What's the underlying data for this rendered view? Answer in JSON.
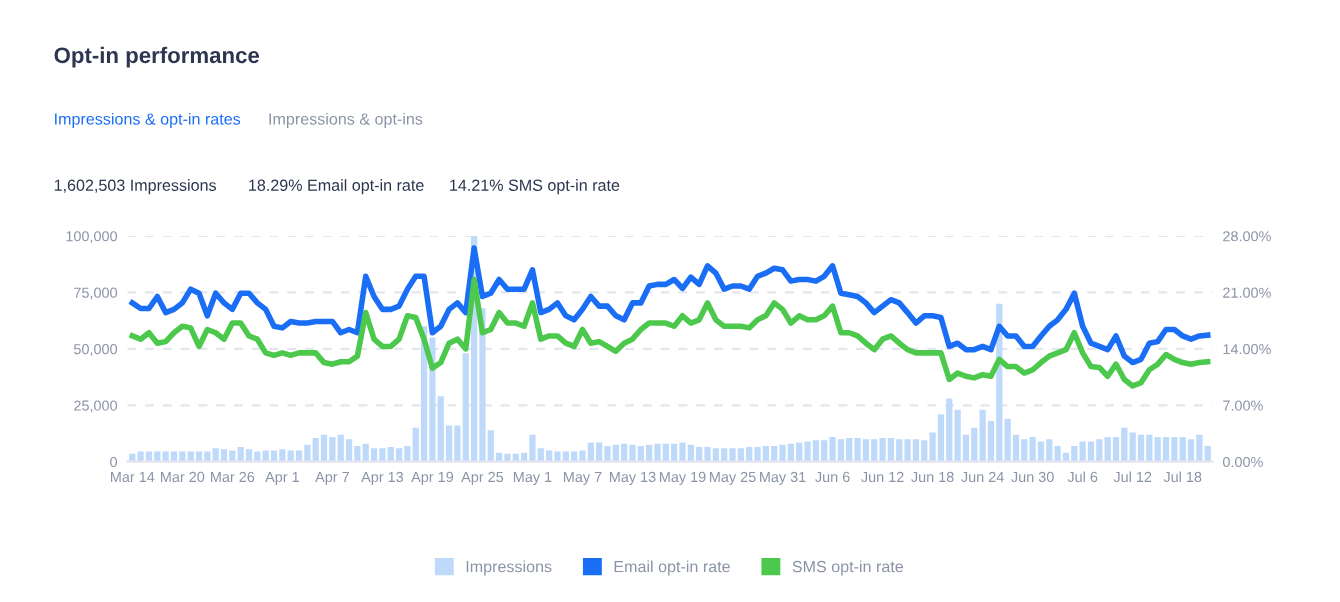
{
  "chart_data": {
    "type": "bar",
    "title": "Opt-in performance",
    "annotations": [
      "Impressions & opt-in rates",
      "Impressions & opt-ins",
      "1,602,503 Impressions",
      "18.29% Email opt-in rate",
      "14.21% SMS opt-in rate"
    ],
    "categories": [
      "Mar 14",
      null,
      null,
      null,
      null,
      null,
      "Mar 20",
      null,
      null,
      null,
      null,
      null,
      "Mar 26",
      null,
      null,
      null,
      null,
      null,
      "Apr 1",
      null,
      null,
      null,
      null,
      null,
      "Apr 7",
      null,
      null,
      null,
      null,
      null,
      "Apr 13",
      null,
      null,
      null,
      null,
      null,
      "Apr 19",
      null,
      null,
      null,
      null,
      null,
      "Apr 25",
      null,
      null,
      null,
      null,
      null,
      "May 1",
      null,
      null,
      null,
      null,
      null,
      "May 7",
      null,
      null,
      null,
      null,
      null,
      "May 13",
      null,
      null,
      null,
      null,
      null,
      "May 19",
      null,
      null,
      null,
      null,
      null,
      "May 25",
      null,
      null,
      null,
      null,
      null,
      "May 31",
      null,
      null,
      null,
      null,
      null,
      "Jun 6",
      null,
      null,
      null,
      null,
      null,
      "Jun 12",
      null,
      null,
      null,
      null,
      null,
      "Jun 18",
      null,
      null,
      null,
      null,
      null,
      "Jun 24",
      null,
      null,
      null,
      null,
      null,
      "Jun 30",
      null,
      null,
      null,
      null,
      null,
      "Jul 6",
      null,
      null,
      null,
      null,
      null,
      "Jul 12",
      null,
      null,
      null,
      null,
      null,
      "Jul 18",
      null,
      null,
      null
    ],
    "series": [
      {
        "name": "Impressions",
        "color": "#bfd9fb",
        "values": [
          3500,
          4500,
          4500,
          4500,
          4500,
          4500,
          4500,
          4500,
          4500,
          4500,
          6000,
          5500,
          5000,
          6500,
          5500,
          4500,
          5000,
          5000,
          5500,
          5000,
          5000,
          7500,
          10500,
          12000,
          11000,
          12000,
          10000,
          7000,
          8000,
          6000,
          6000,
          6500,
          6000,
          7000,
          15000,
          60000,
          55000,
          29000,
          16000,
          16000,
          48000,
          100000,
          68000,
          14000,
          4000,
          3500,
          3500,
          4000,
          12000,
          6000,
          5000,
          4500,
          4500,
          4500,
          5000,
          8500,
          8500,
          7000,
          7500,
          8000,
          7500,
          7000,
          7500,
          8000,
          8000,
          8000,
          8500,
          7500,
          6500,
          6500,
          6000,
          6000,
          6000,
          6000,
          6500,
          6500,
          7000,
          7000,
          7500,
          8000,
          8500,
          9000,
          9500,
          9500,
          11000,
          10000,
          10500,
          10500,
          10000,
          10000,
          10500,
          10500,
          10000,
          10000,
          10000,
          9500,
          13000,
          21000,
          28000,
          23000,
          12000,
          15000,
          23000,
          18000,
          70000,
          19000,
          12000,
          10000,
          11000,
          9000,
          10000,
          7000,
          4000,
          7000,
          9000,
          9000,
          10000,
          11000,
          11000,
          15000,
          13000,
          12000,
          12000,
          11000,
          11000,
          11000,
          11000,
          10000,
          12000,
          7000
        ]
      },
      {
        "name": "Email opt-in rate",
        "type": "line",
        "axis": "y2",
        "color": "#1a6ef5",
        "values": [
          19.7,
          19.0,
          19.0,
          20.5,
          18.5,
          18.9,
          19.7,
          21.4,
          20.9,
          18.1,
          20.9,
          19.7,
          18.9,
          20.9,
          20.9,
          19.7,
          18.9,
          16.8,
          16.6,
          17.4,
          17.2,
          17.2,
          17.4,
          17.4,
          17.4,
          16.0,
          16.4,
          16.0,
          23.0,
          20.5,
          18.9,
          18.9,
          19.3,
          21.4,
          23.0,
          23.0,
          16.0,
          16.8,
          18.9,
          19.7,
          18.5,
          26.5,
          20.5,
          20.9,
          22.6,
          21.4,
          21.4,
          21.4,
          23.8,
          18.5,
          18.9,
          19.7,
          18.1,
          17.6,
          18.9,
          20.5,
          19.3,
          19.3,
          18.1,
          17.6,
          19.7,
          19.7,
          21.8,
          22.0,
          22.0,
          22.6,
          21.5,
          22.9,
          22.0,
          24.3,
          23.4,
          21.4,
          21.8,
          21.8,
          21.4,
          23.0,
          23.4,
          24.0,
          23.8,
          22.4,
          22.6,
          22.6,
          22.4,
          23.0,
          24.3,
          20.9,
          20.7,
          20.5,
          19.7,
          18.5,
          19.3,
          20.1,
          19.7,
          18.5,
          17.2,
          18.1,
          18.1,
          17.9,
          14.3,
          14.7,
          13.9,
          13.9,
          14.3,
          13.9,
          16.8,
          15.6,
          15.6,
          14.3,
          14.3,
          15.6,
          16.8,
          17.6,
          18.9,
          20.9,
          16.8,
          14.7,
          14.3,
          13.9,
          15.6,
          13.1,
          12.3,
          12.7,
          14.7,
          14.9,
          16.4,
          16.4,
          15.6,
          15.2,
          15.6,
          15.7
        ]
      },
      {
        "name": "SMS opt-in rate",
        "type": "line",
        "axis": "y2",
        "color": "#4cc94c",
        "values": [
          15.6,
          15.2,
          16.0,
          14.7,
          14.9,
          16.0,
          16.8,
          16.6,
          14.3,
          16.4,
          16.0,
          15.2,
          17.2,
          17.2,
          15.6,
          15.2,
          13.5,
          13.2,
          13.5,
          13.2,
          13.5,
          13.5,
          13.5,
          12.3,
          12.1,
          12.4,
          12.4,
          13.1,
          18.5,
          15.2,
          14.3,
          14.3,
          15.2,
          18.1,
          17.9,
          15.2,
          11.6,
          12.3,
          14.7,
          15.2,
          14.0,
          22.6,
          16.0,
          16.4,
          18.5,
          17.2,
          17.2,
          16.8,
          19.7,
          15.2,
          15.6,
          15.6,
          14.7,
          14.3,
          16.4,
          14.7,
          14.9,
          14.3,
          13.7,
          14.7,
          15.2,
          16.4,
          17.2,
          17.2,
          17.2,
          16.8,
          18.1,
          17.2,
          17.6,
          19.7,
          17.6,
          16.8,
          16.8,
          16.8,
          16.6,
          17.6,
          18.1,
          19.7,
          18.9,
          17.2,
          18.1,
          17.6,
          17.6,
          18.1,
          19.3,
          16.0,
          16.0,
          15.6,
          14.7,
          13.9,
          15.2,
          15.6,
          14.7,
          13.9,
          13.5,
          13.5,
          13.5,
          13.5,
          10.2,
          11.0,
          10.6,
          10.4,
          10.8,
          10.6,
          12.7,
          11.8,
          11.8,
          11.0,
          11.4,
          12.3,
          13.1,
          13.5,
          13.9,
          16.0,
          13.5,
          11.8,
          11.7,
          10.6,
          12.1,
          10.2,
          9.4,
          9.8,
          11.4,
          12.1,
          13.3,
          12.7,
          12.3,
          12.1,
          12.3,
          12.4
        ]
      }
    ],
    "ylim": [
      0,
      100000
    ],
    "yticks": [
      0,
      {
        "value": 25000,
        "label": "25,000"
      },
      {
        "value": 50000,
        "label": "50,000"
      },
      {
        "value": 75000,
        "label": "75,000"
      },
      {
        "value": 100000,
        "label": "100,000"
      }
    ],
    "y2lim": [
      0,
      28
    ],
    "y2ticks": [
      {
        "value": 0,
        "label": "0.00%"
      },
      {
        "value": 7,
        "label": "7.00%"
      },
      {
        "value": 14,
        "label": "14.00%"
      },
      {
        "value": 21,
        "label": "21.00%"
      },
      {
        "value": 28,
        "label": "28.00%"
      }
    ],
    "grid": "y",
    "legend": "bottom",
    "line_style": "solid",
    "marker": "none"
  }
}
